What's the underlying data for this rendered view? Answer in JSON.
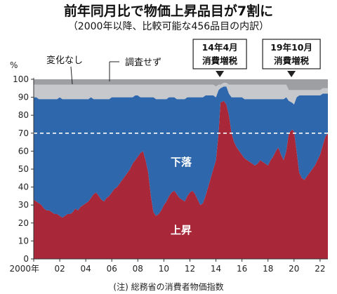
{
  "title": "前年同月比で物価上昇品目が7割に",
  "subtitle": "（2000年以降、比較可能な456品目の内訳）",
  "note": "(注) 総務省の消費者物価指数",
  "chart_data": {
    "type": "area",
    "stacked": true,
    "ylabel": "%",
    "ylim": [
      0,
      100
    ],
    "yticks": [
      0,
      10,
      20,
      30,
      40,
      50,
      60,
      70,
      80,
      90,
      100
    ],
    "xlim": [
      2000,
      2022.6
    ],
    "xticks": [
      2000,
      2002,
      2004,
      2006,
      2008,
      2010,
      2012,
      2014,
      2016,
      2018,
      2020,
      2022
    ],
    "xtick_labels": [
      "2000年",
      "02",
      "04",
      "06",
      "08",
      "10",
      "12",
      "14",
      "16",
      "18",
      "20",
      "22"
    ],
    "reference_line": 70,
    "colors": {
      "rise": "#a8283a",
      "fall": "#2f67ad",
      "unchanged": "#c6c8cb",
      "unsurveyed": "#9d9fa2"
    },
    "x": [
      2000.0,
      2000.2,
      2000.4,
      2000.6,
      2000.8,
      2001.0,
      2001.2,
      2001.4,
      2001.6,
      2001.8,
      2002.0,
      2002.2,
      2002.4,
      2002.6,
      2002.8,
      2003.0,
      2003.2,
      2003.4,
      2003.6,
      2003.8,
      2004.0,
      2004.2,
      2004.4,
      2004.6,
      2004.8,
      2005.0,
      2005.2,
      2005.4,
      2005.6,
      2005.8,
      2006.0,
      2006.2,
      2006.4,
      2006.6,
      2006.8,
      2007.0,
      2007.2,
      2007.4,
      2007.6,
      2007.8,
      2008.0,
      2008.2,
      2008.4,
      2008.6,
      2008.8,
      2009.0,
      2009.2,
      2009.4,
      2009.6,
      2009.8,
      2010.0,
      2010.2,
      2010.4,
      2010.6,
      2010.8,
      2011.0,
      2011.2,
      2011.4,
      2011.6,
      2011.8,
      2012.0,
      2012.2,
      2012.4,
      2012.6,
      2012.8,
      2013.0,
      2013.2,
      2013.4,
      2013.6,
      2013.8,
      2014.0,
      2014.2,
      2014.35,
      2014.6,
      2014.8,
      2015.0,
      2015.2,
      2015.4,
      2015.6,
      2015.8,
      2016.0,
      2016.2,
      2016.4,
      2016.6,
      2016.8,
      2017.0,
      2017.2,
      2017.4,
      2017.6,
      2017.8,
      2018.0,
      2018.2,
      2018.4,
      2018.6,
      2018.8,
      2019.0,
      2019.2,
      2019.4,
      2019.6,
      2019.85,
      2020.0,
      2020.2,
      2020.4,
      2020.6,
      2020.8,
      2021.0,
      2021.2,
      2021.4,
      2021.6,
      2021.8,
      2022.0,
      2022.2,
      2022.4,
      2022.6
    ],
    "series": [
      {
        "name": "上昇",
        "values": [
          33,
          32,
          31,
          30,
          28,
          27,
          27,
          26,
          25,
          25,
          24,
          23,
          24,
          25,
          25,
          26,
          28,
          27,
          29,
          30,
          31,
          32,
          34,
          36,
          37,
          35,
          33,
          32,
          34,
          35,
          37,
          39,
          40,
          42,
          44,
          46,
          48,
          50,
          53,
          55,
          57,
          59,
          60,
          55,
          48,
          35,
          26,
          24,
          25,
          27,
          30,
          32,
          35,
          37,
          38,
          36,
          34,
          33,
          32,
          35,
          37,
          38,
          36,
          33,
          30,
          31,
          35,
          40,
          45,
          50,
          55,
          70,
          87,
          88,
          86,
          80,
          70,
          65,
          62,
          60,
          58,
          56,
          55,
          54,
          53,
          52,
          53,
          55,
          54,
          53,
          52,
          55,
          57,
          60,
          62,
          58,
          55,
          60,
          70,
          72,
          71,
          60,
          48,
          45,
          44,
          46,
          48,
          50,
          52,
          55,
          58,
          63,
          68,
          70
        ]
      },
      {
        "name": "下落",
        "values": [
          57,
          58,
          58,
          59,
          61,
          62,
          62,
          63,
          64,
          64,
          66,
          66,
          65,
          64,
          64,
          63,
          61,
          62,
          60,
          59,
          58,
          57,
          56,
          53,
          52,
          54,
          56,
          57,
          55,
          54,
          53,
          51,
          50,
          48,
          46,
          44,
          42,
          40,
          37,
          36,
          34,
          31,
          30,
          35,
          42,
          55,
          64,
          65,
          64,
          62,
          59,
          57,
          55,
          53,
          52,
          53,
          55,
          56,
          57,
          55,
          53,
          52,
          54,
          57,
          60,
          59,
          56,
          51,
          46,
          41,
          35,
          24,
          8,
          8,
          10,
          12,
          20,
          25,
          28,
          30,
          32,
          33,
          34,
          35,
          36,
          37,
          36,
          34,
          35,
          36,
          37,
          34,
          32,
          29,
          27,
          31,
          34,
          30,
          18,
          15,
          15,
          30,
          43,
          46,
          47,
          45,
          43,
          41,
          39,
          36,
          33,
          29,
          24,
          22
        ]
      },
      {
        "name": "変化なし",
        "values": [
          7,
          7,
          8,
          8,
          8,
          8,
          8,
          8,
          8,
          8,
          7,
          8,
          8,
          8,
          8,
          8,
          8,
          8,
          8,
          8,
          8,
          8,
          7,
          8,
          8,
          8,
          8,
          8,
          8,
          8,
          7,
          7,
          7,
          7,
          7,
          7,
          7,
          7,
          7,
          6,
          6,
          7,
          7,
          7,
          7,
          7,
          7,
          8,
          8,
          8,
          8,
          8,
          7,
          7,
          7,
          8,
          8,
          8,
          8,
          7,
          7,
          7,
          7,
          7,
          7,
          7,
          6,
          6,
          6,
          6,
          6,
          3,
          2,
          2,
          2,
          5,
          7,
          7,
          7,
          7,
          7,
          8,
          8,
          8,
          8,
          8,
          8,
          8,
          8,
          8,
          8,
          8,
          8,
          8,
          8,
          8,
          8,
          7,
          6,
          7,
          8,
          4,
          3,
          3,
          3,
          3,
          3,
          3,
          3,
          3,
          3,
          3,
          3,
          3
        ]
      },
      {
        "name": "調査せず",
        "values": [
          3,
          3,
          3,
          3,
          3,
          3,
          3,
          3,
          3,
          3,
          3,
          3,
          3,
          3,
          3,
          3,
          3,
          3,
          3,
          3,
          3,
          3,
          3,
          3,
          3,
          3,
          3,
          3,
          3,
          3,
          3,
          3,
          3,
          3,
          3,
          3,
          3,
          3,
          3,
          3,
          3,
          3,
          3,
          3,
          3,
          3,
          3,
          3,
          3,
          3,
          3,
          3,
          3,
          3,
          3,
          3,
          3,
          3,
          3,
          3,
          3,
          3,
          3,
          3,
          3,
          3,
          3,
          3,
          3,
          3,
          4,
          3,
          3,
          2,
          2,
          3,
          3,
          3,
          3,
          3,
          3,
          3,
          3,
          3,
          3,
          3,
          3,
          3,
          3,
          3,
          3,
          3,
          3,
          3,
          3,
          3,
          3,
          3,
          6,
          6,
          6,
          6,
          6,
          6,
          6,
          6,
          6,
          6,
          6,
          6,
          6,
          5,
          5,
          5
        ]
      }
    ],
    "annotations": [
      {
        "label": "14年4月",
        "sublabel": "消費増税",
        "x": 2014.3
      },
      {
        "label": "19年10月",
        "sublabel": "消費増税",
        "x": 2019.8
      }
    ]
  }
}
